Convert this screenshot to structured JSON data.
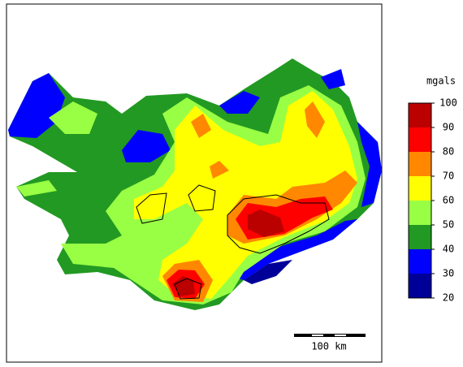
{
  "legend": {
    "unit": "mgals",
    "bins": [
      20,
      30,
      40,
      50,
      60,
      70,
      80,
      90,
      100
    ],
    "colors": [
      "#000099",
      "#0000ff",
      "#229922",
      "#99ff44",
      "#ffff00",
      "#ff8800",
      "#ff0000",
      "#bb0000"
    ]
  },
  "scale_bar": {
    "label": "100 km"
  }
}
